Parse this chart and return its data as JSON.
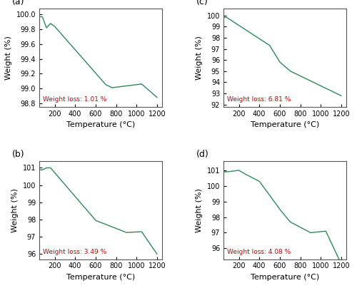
{
  "line_color": "#2e8b57",
  "line_width": 1.0,
  "annotation_color": "#cc0000",
  "annotation_fontsize": 6.5,
  "axis_label_fontsize": 8,
  "tick_fontsize": 7,
  "panel_label_fontsize": 9,
  "xlabel": "Temperature (°C)",
  "ylabel": "Weight (%)",
  "panels": [
    {
      "label": "(a)",
      "weight_loss_text": "Weight loss: 1.01 %",
      "ylim": [
        98.75,
        100.08
      ],
      "yticks": [
        98.8,
        99.0,
        99.2,
        99.4,
        99.6,
        99.8,
        100.0
      ],
      "curve_type": "a"
    },
    {
      "label": "(c)",
      "weight_loss_text": "Weight loss: 6.81 %",
      "ylim": [
        91.8,
        100.6
      ],
      "yticks": [
        92,
        93,
        94,
        95,
        96,
        97,
        98,
        99,
        100
      ],
      "curve_type": "c"
    },
    {
      "label": "(b)",
      "weight_loss_text": "Weight loss: 3.49 %",
      "ylim": [
        95.7,
        101.4
      ],
      "yticks": [
        96,
        97,
        98,
        99,
        100,
        101
      ],
      "curve_type": "b"
    },
    {
      "label": "(d)",
      "weight_loss_text": "Weight loss: 4.08 %",
      "ylim": [
        95.3,
        101.6
      ],
      "yticks": [
        96,
        97,
        98,
        99,
        100,
        101
      ],
      "curve_type": "d"
    }
  ],
  "xlim": [
    50,
    1250
  ],
  "xticks": [
    200,
    400,
    600,
    800,
    1000,
    1200
  ]
}
